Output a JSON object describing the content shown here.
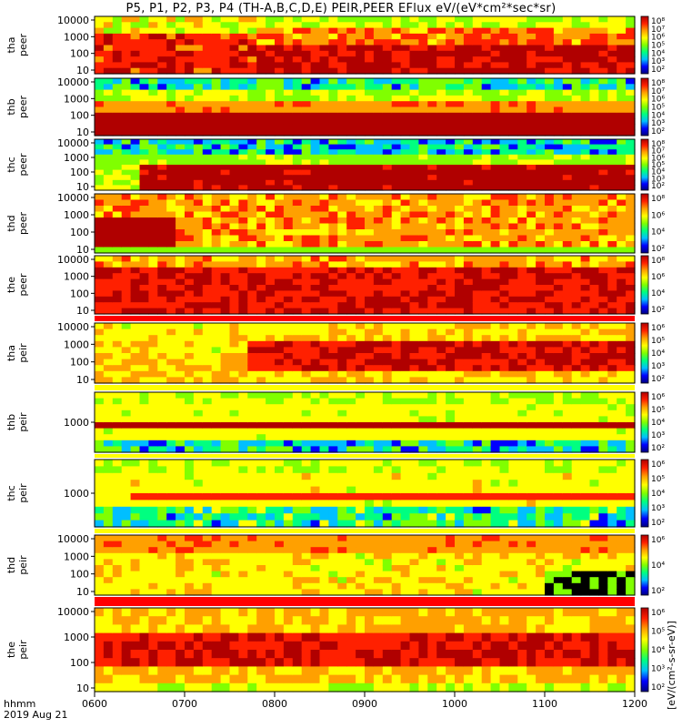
{
  "title": "P5, P1, P2, P3, P4 (TH-A,B,C,D,E) PEIR,PEER EFlux eV/(eV*cm²*sec*sr)",
  "time_axis": {
    "label_line1": "hhmm",
    "label_line2": "2019 Aug 21"
  },
  "colorbar_label": "[eV/(cm²-s-sr-eV)]",
  "chart_data": {
    "type": "heatmap",
    "x": [
      "0600",
      "0700",
      "0800",
      "0900",
      "1000",
      "1100",
      "1200"
    ],
    "panels": [
      {
        "name": "tha peer",
        "ylabel": [
          "tha",
          "peer"
        ],
        "yticks": [
          "10000",
          "1000",
          "100",
          "10"
        ],
        "colorbar_ticks": [
          "10⁸",
          "10⁷",
          "10⁶",
          "10⁵",
          "10⁴",
          "10³",
          "10²"
        ],
        "profile": "a_e"
      },
      {
        "name": "thb peer",
        "ylabel": [
          "thb",
          "peer"
        ],
        "yticks": [
          "10000",
          "1000",
          "100",
          "10"
        ],
        "colorbar_ticks": [
          "10⁸",
          "10⁷",
          "10⁶",
          "10⁵",
          "10⁴",
          "10³",
          "10²"
        ],
        "profile": "b_e"
      },
      {
        "name": "thc peer",
        "ylabel": [
          "thc",
          "peer"
        ],
        "yticks": [
          "10000",
          "1000",
          "100",
          "10"
        ],
        "colorbar_ticks": [
          "10⁸",
          "10⁷",
          "10⁶",
          "10⁵",
          "10⁴",
          "10³",
          "10²"
        ],
        "profile": "c_e"
      },
      {
        "name": "thd peer",
        "ylabel": [
          "thd",
          "peer"
        ],
        "yticks": [
          "10000",
          "1000",
          "100",
          "10"
        ],
        "colorbar_ticks": [
          "10⁸",
          "10⁶",
          "10⁴",
          "10²"
        ],
        "profile": "d_e"
      },
      {
        "name": "the peer",
        "ylabel": [
          "the",
          "peer"
        ],
        "yticks": [
          "10000",
          "1000",
          "100",
          "10"
        ],
        "colorbar_ticks": [
          "10⁸",
          "10⁶",
          "10⁴",
          "10²"
        ],
        "profile": "e_e"
      },
      {
        "name": "tha peir",
        "ylabel": [
          "tha",
          "peir"
        ],
        "yticks": [
          "10000",
          "1000",
          "100",
          "10"
        ],
        "colorbar_ticks": [
          "10⁶",
          "10⁵",
          "10⁴",
          "10³",
          "10²"
        ],
        "profile": "a_i"
      },
      {
        "name": "thb peir",
        "ylabel": [
          "thb",
          "peir"
        ],
        "yticks": [
          "1000"
        ],
        "colorbar_ticks": [
          "10⁶",
          "10⁵",
          "10⁴",
          "10³",
          "10²"
        ],
        "profile": "b_i"
      },
      {
        "name": "thc peir",
        "ylabel": [
          "thc",
          "peir"
        ],
        "yticks": [
          "1000"
        ],
        "colorbar_ticks": [
          "10⁶",
          "10⁵",
          "10⁴",
          "10³",
          "10²"
        ],
        "profile": "c_i"
      },
      {
        "name": "thd peir",
        "ylabel": [
          "thd",
          "peir"
        ],
        "yticks": [
          "10000",
          "1000",
          "100",
          "10"
        ],
        "colorbar_ticks": [
          "10⁶",
          "10⁴",
          "10²"
        ],
        "profile": "d_i"
      },
      {
        "name": "the peir",
        "ylabel": [
          "the",
          "peir"
        ],
        "yticks": [
          "10000",
          "1000",
          "100",
          "10"
        ],
        "colorbar_ticks": [
          "10⁶",
          "10⁵",
          "10⁴",
          "10³",
          "10²"
        ],
        "profile": "e_i"
      }
    ],
    "colorscale": [
      "#000080",
      "#0000ff",
      "#00bfff",
      "#00ff80",
      "#80ff00",
      "#ffff00",
      "#ffa000",
      "#ff2000",
      "#b00000"
    ]
  }
}
